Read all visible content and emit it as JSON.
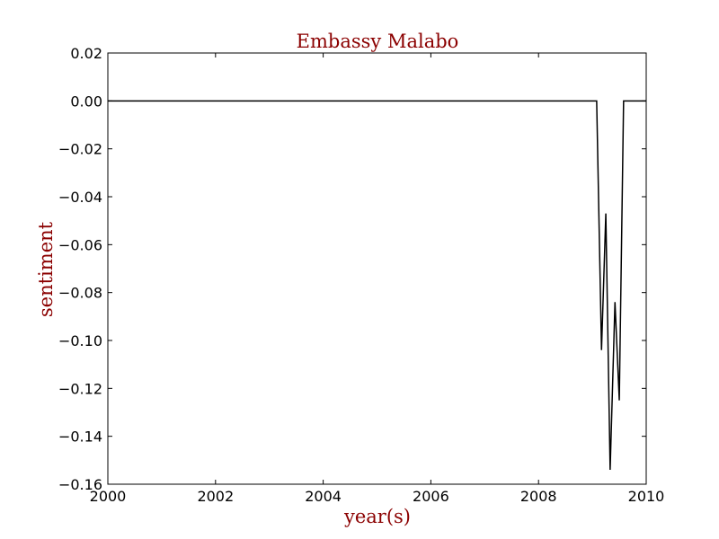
{
  "chart_data": {
    "type": "line",
    "title": "Embassy Malabo",
    "xlabel": "year(s)",
    "ylabel": "sentiment",
    "xlim": [
      2000,
      2010
    ],
    "ylim": [
      -0.16,
      0.02
    ],
    "xticks": [
      2000,
      2002,
      2004,
      2006,
      2008,
      2010
    ],
    "yticks": [
      0.02,
      0.0,
      -0.02,
      -0.04,
      -0.06,
      -0.08,
      -0.1,
      -0.12,
      -0.14,
      -0.16
    ],
    "xtick_labels": [
      "2000",
      "2002",
      "2004",
      "2006",
      "2008",
      "2010"
    ],
    "ytick_labels": [
      "0.02",
      "0.00",
      "−0.02",
      "−0.04",
      "−0.06",
      "−0.08",
      "−0.10",
      "−0.12",
      "−0.14",
      "−0.16"
    ],
    "grid": false,
    "series": [
      {
        "color": "#000000",
        "x": [
          2000,
          2009.08,
          2009.17,
          2009.25,
          2009.33,
          2009.42,
          2009.5,
          2009.58,
          2010
        ],
        "y": [
          0.0,
          0.0,
          -0.104,
          -0.047,
          -0.154,
          -0.084,
          -0.125,
          0.0,
          0.0
        ]
      }
    ],
    "colors": {
      "title": "#8b0000",
      "axis_label": "#8b0000",
      "line": "#000000"
    }
  }
}
